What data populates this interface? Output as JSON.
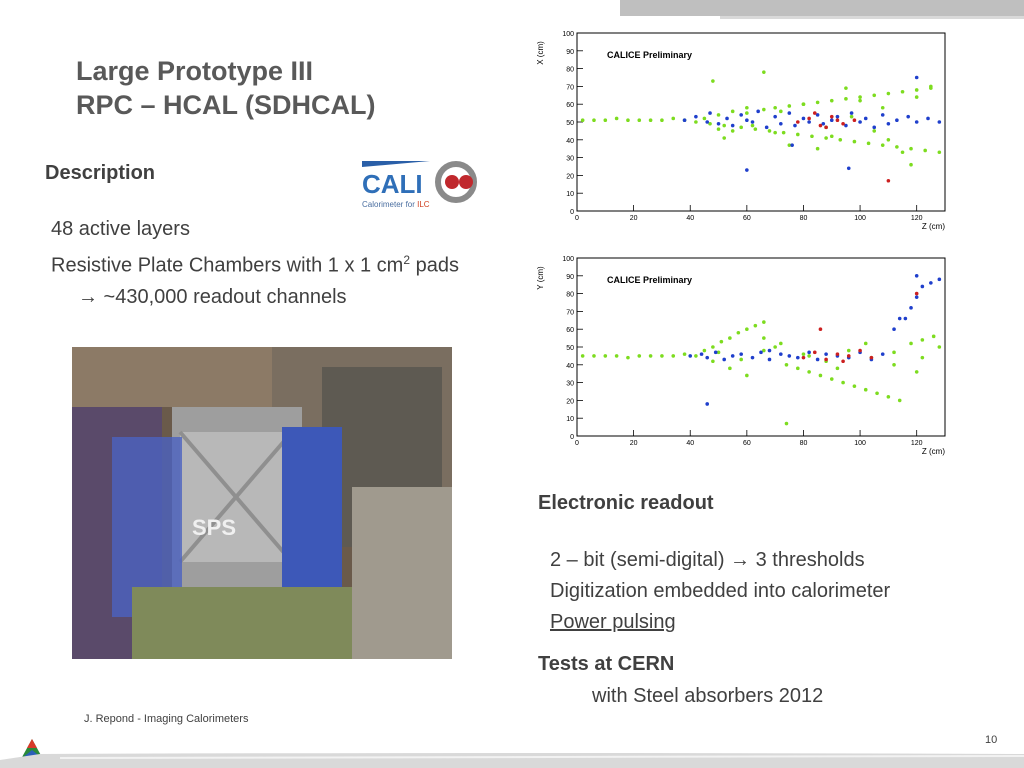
{
  "header": {
    "title_line1": "Large Prototype III",
    "title_line2": "RPC – HCAL (SDHCAL)"
  },
  "description": {
    "heading": "Description",
    "line1": "48 active layers",
    "line2_pre": "Resistive Plate Chambers with 1 x 1 cm",
    "line2_sup": "2",
    "line2_post": " pads",
    "line3": "→ ~430,000 readout channels"
  },
  "logo": {
    "main": "CALI",
    "sub_prefix": "Calorimeter for ",
    "sub_highlight": "ILC"
  },
  "photo": {
    "label": "SPS"
  },
  "electronic": {
    "heading": "Electronic readout",
    "line1": "2 – bit (semi-digital) → 3 thresholds",
    "line2": "Digitization embedded  into calorimeter",
    "line3": "Power pulsing"
  },
  "tests": {
    "heading": "Tests at CERN",
    "line1": "with Steel absorbers 2012"
  },
  "footer": {
    "author": "J. Repond - Imaging Calorimeters",
    "page": "10"
  },
  "chart_data": [
    {
      "type": "scatter",
      "title": "CALICE Preliminary",
      "xlabel": "Z (cm)",
      "ylabel": "X (cm)",
      "xlim": [
        0,
        130
      ],
      "ylim": [
        0,
        100
      ],
      "xticks": [
        "0",
        "20",
        "40",
        "60",
        "80",
        "100",
        "120"
      ],
      "yticks": [
        "0",
        "10",
        "20",
        "30",
        "40",
        "50",
        "60",
        "70",
        "80",
        "90",
        "100"
      ],
      "series": [
        {
          "color": "#7ddc1f",
          "x": [
            2,
            6,
            10,
            14,
            18,
            22,
            26,
            30,
            34,
            38,
            42,
            45,
            47,
            50,
            52,
            55,
            58,
            60,
            63,
            66,
            68,
            70,
            73,
            75,
            78,
            80,
            83,
            85,
            88,
            90,
            93,
            95,
            98,
            100,
            103,
            105,
            108,
            110,
            113,
            115,
            118,
            120,
            123,
            125,
            128,
            50,
            60,
            70,
            80,
            90,
            100,
            110,
            120,
            48,
            55,
            66,
            75,
            85,
            95,
            105,
            115,
            125,
            52,
            62,
            72,
            88,
            97,
            108,
            118
          ],
          "y": [
            51,
            51,
            51,
            52,
            51,
            51,
            51,
            51,
            52,
            51,
            50,
            52,
            49,
            54,
            48,
            56,
            47,
            55,
            46,
            57,
            45,
            58,
            44,
            59,
            43,
            60,
            42,
            61,
            41,
            62,
            40,
            63,
            39,
            64,
            38,
            65,
            37,
            66,
            36,
            67,
            35,
            68,
            34,
            69,
            33,
            46,
            58,
            44,
            60,
            42,
            62,
            40,
            64,
            73,
            45,
            78,
            37,
            35,
            69,
            45,
            33,
            70,
            41,
            48,
            56,
            47,
            53,
            58,
            26
          ]
        },
        {
          "color": "#1f3fcc",
          "x": [
            38,
            42,
            46,
            47,
            50,
            53,
            55,
            58,
            60,
            62,
            64,
            67,
            70,
            72,
            75,
            77,
            80,
            82,
            85,
            87,
            90,
            92,
            95,
            97,
            100,
            102,
            105,
            108,
            110,
            113,
            117,
            120,
            124,
            128,
            60,
            76,
            96,
            120
          ],
          "y": [
            51,
            53,
            50,
            55,
            49,
            52,
            48,
            54,
            51,
            50,
            56,
            47,
            53,
            49,
            55,
            48,
            52,
            50,
            54,
            49,
            51,
            53,
            48,
            55,
            50,
            52,
            47,
            54,
            49,
            51,
            53,
            50,
            52,
            50,
            23,
            37,
            24,
            75
          ]
        },
        {
          "color": "#cc2020",
          "x": [
            78,
            82,
            86,
            90,
            94,
            98,
            84,
            88,
            92,
            110
          ],
          "y": [
            50,
            52,
            48,
            53,
            49,
            51,
            55,
            47,
            51,
            17
          ]
        }
      ]
    },
    {
      "type": "scatter",
      "title": "CALICE Preliminary",
      "xlabel": "Z (cm)",
      "ylabel": "Y (cm)",
      "xlim": [
        0,
        130
      ],
      "ylim": [
        0,
        100
      ],
      "xticks": [
        "0",
        "20",
        "40",
        "60",
        "80",
        "100",
        "120"
      ],
      "yticks": [
        "0",
        "10",
        "20",
        "30",
        "40",
        "50",
        "60",
        "70",
        "80",
        "90",
        "100"
      ],
      "series": [
        {
          "color": "#7ddc1f",
          "x": [
            2,
            6,
            10,
            14,
            18,
            22,
            26,
            30,
            34,
            38,
            42,
            45,
            48,
            51,
            54,
            57,
            60,
            63,
            66,
            70,
            74,
            78,
            82,
            86,
            90,
            94,
            98,
            102,
            106,
            110,
            114,
            118,
            122,
            126,
            128,
            48,
            54,
            60,
            66,
            72,
            80,
            88,
            96,
            104,
            112,
            120,
            50,
            58,
            66,
            74,
            82,
            92,
            102,
            112,
            122
          ],
          "y": [
            45,
            45,
            45,
            45,
            44,
            45,
            45,
            45,
            45,
            46,
            45,
            48,
            50,
            53,
            55,
            58,
            60,
            62,
            64,
            50,
            40,
            38,
            36,
            34,
            32,
            30,
            28,
            26,
            24,
            22,
            20,
            52,
            54,
            56,
            50,
            42,
            38,
            34,
            48,
            52,
            46,
            42,
            48,
            44,
            40,
            36,
            47,
            43,
            55,
            7,
            45,
            38,
            52,
            47,
            44
          ]
        },
        {
          "color": "#1f3fcc",
          "x": [
            40,
            44,
            46,
            49,
            52,
            55,
            58,
            62,
            65,
            68,
            72,
            75,
            78,
            82,
            85,
            88,
            92,
            96,
            100,
            104,
            108,
            112,
            116,
            118,
            120,
            122,
            125,
            128,
            46,
            68,
            114,
            120
          ],
          "y": [
            45,
            46,
            44,
            47,
            43,
            45,
            46,
            44,
            47,
            43,
            46,
            45,
            44,
            47,
            43,
            46,
            45,
            44,
            47,
            43,
            46,
            60,
            66,
            72,
            78,
            84,
            86,
            88,
            18,
            48,
            66,
            90
          ]
        },
        {
          "color": "#cc2020",
          "x": [
            80,
            84,
            88,
            92,
            96,
            100,
            104,
            86,
            94,
            120
          ],
          "y": [
            44,
            47,
            43,
            46,
            45,
            48,
            44,
            60,
            42,
            80
          ]
        }
      ]
    }
  ]
}
